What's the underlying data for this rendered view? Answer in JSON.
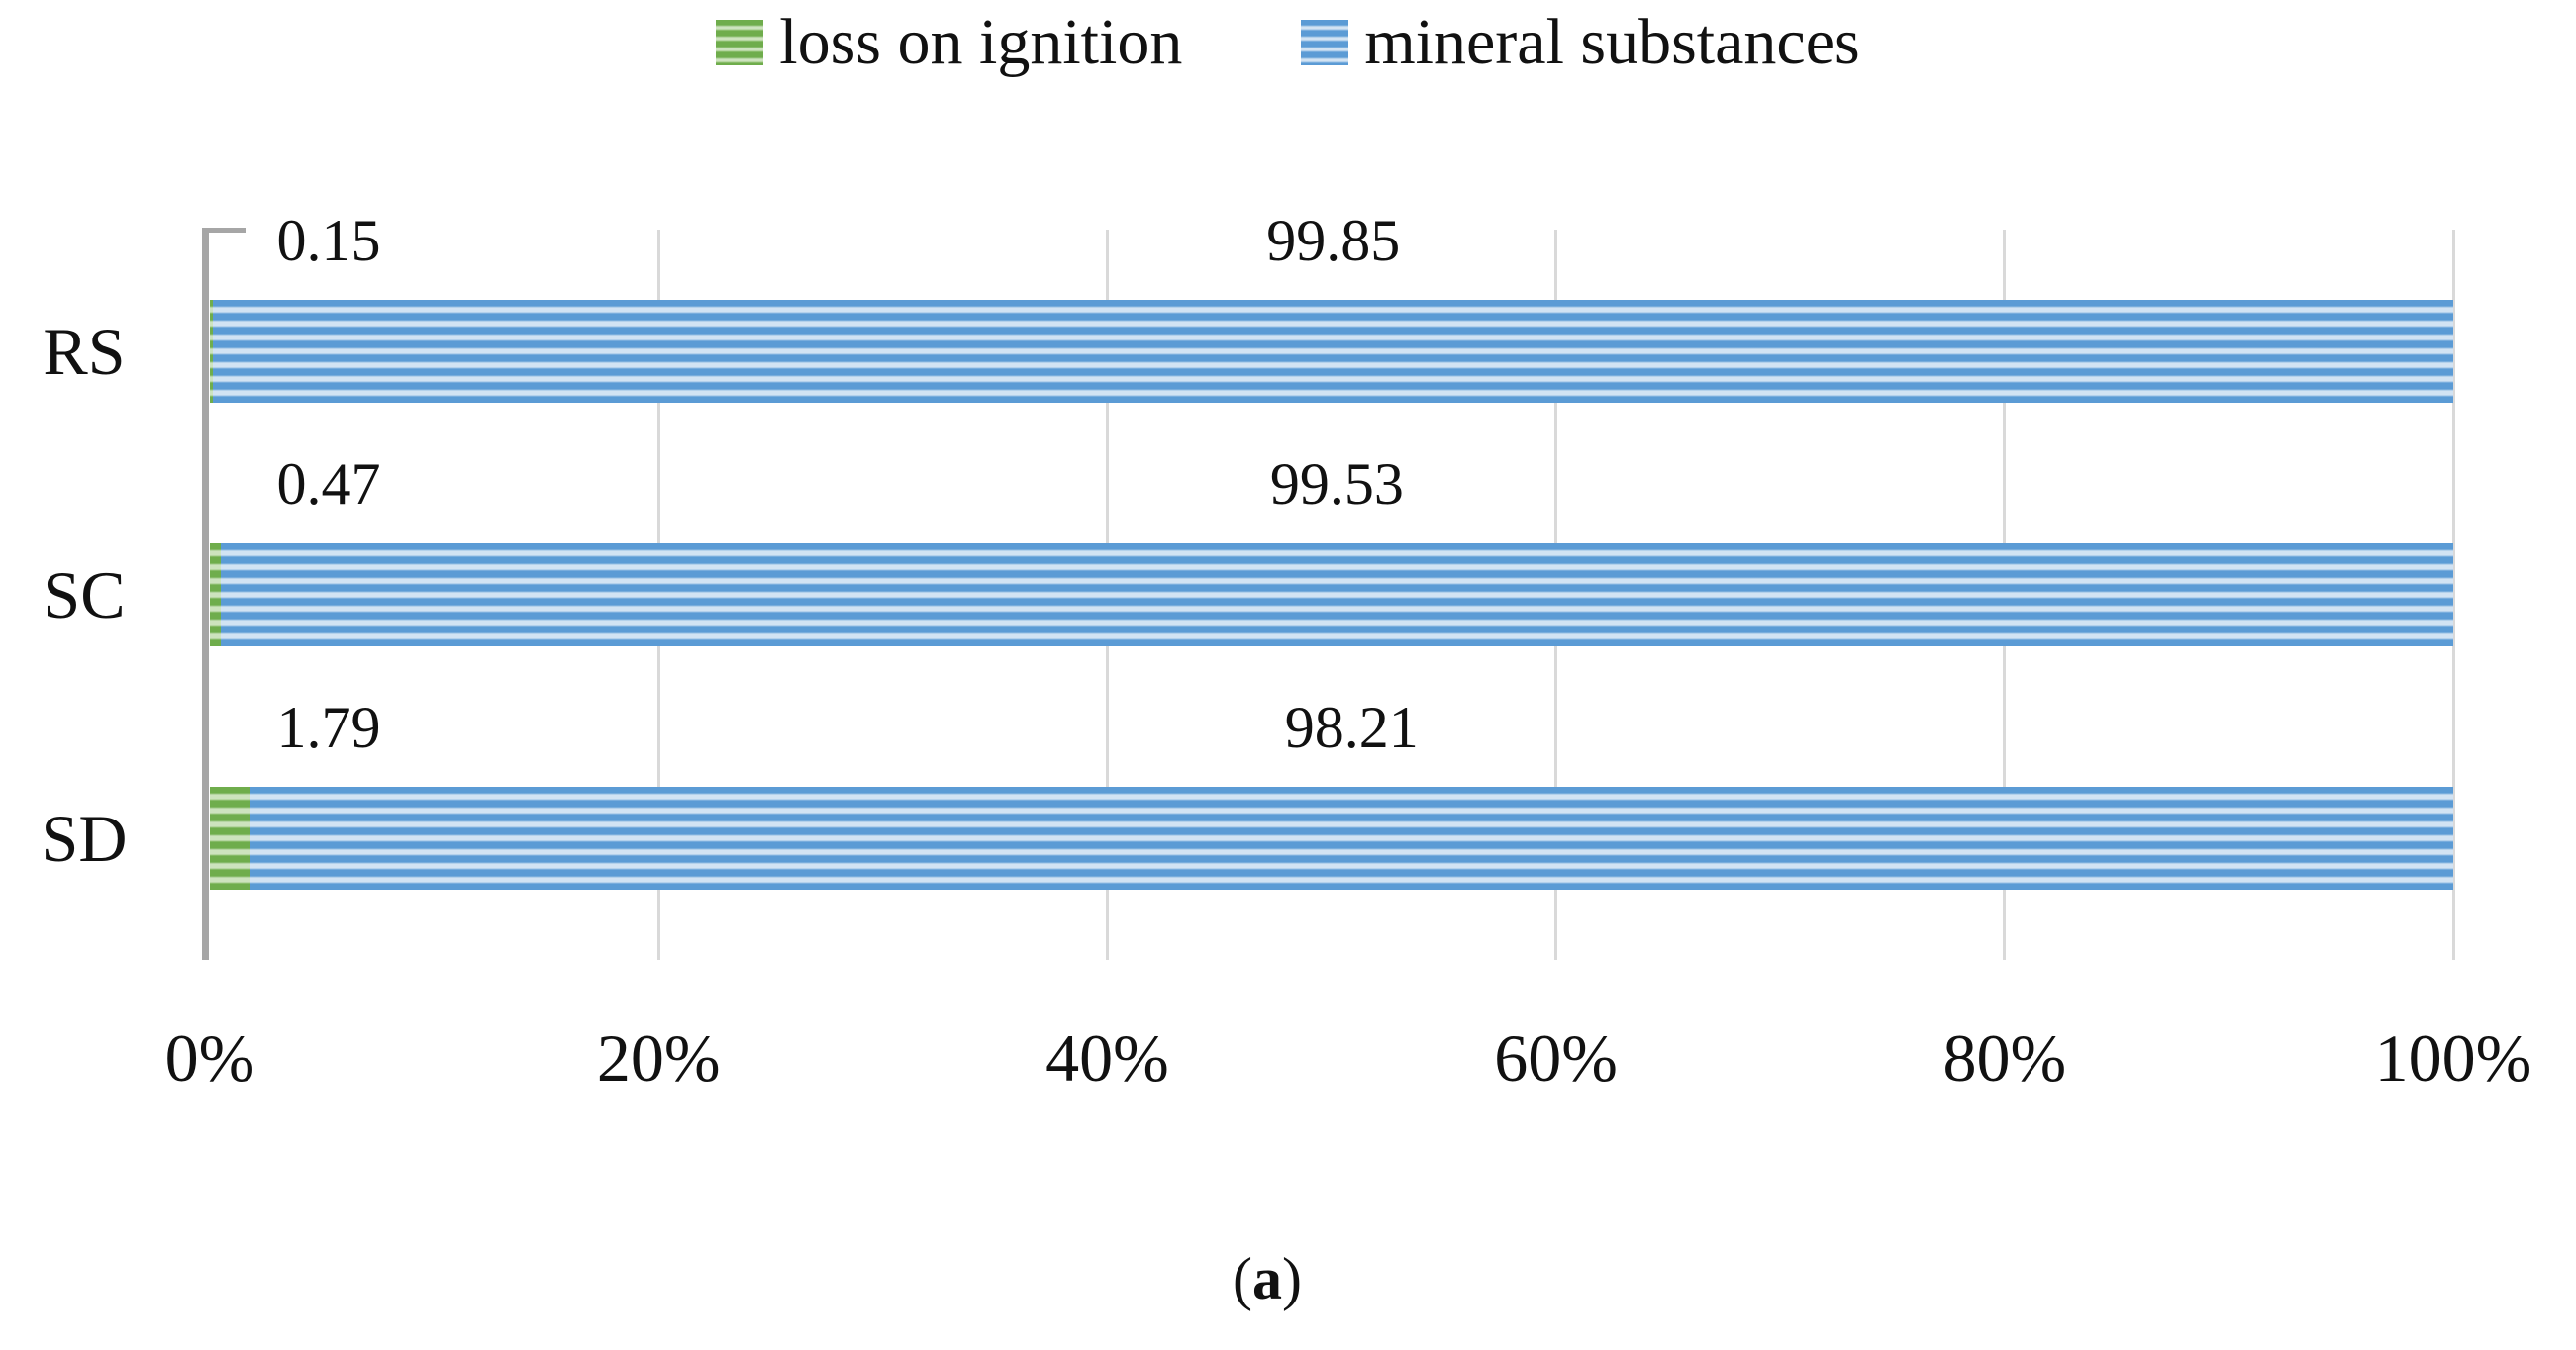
{
  "chart_data": {
    "type": "bar",
    "orientation": "horizontal",
    "stacked": true,
    "unit": "percent",
    "title": "",
    "categories": [
      "RS",
      "SC",
      "SD"
    ],
    "series": [
      {
        "name": "loss on ignition",
        "values": [
          0.15,
          0.47,
          1.79
        ],
        "labels": [
          "0.15",
          "0.47",
          "1.79"
        ]
      },
      {
        "name": "mineral substances",
        "values": [
          99.85,
          99.53,
          98.21
        ],
        "labels": [
          "99.85",
          "99.53",
          "98.21"
        ]
      }
    ],
    "x_axis": {
      "min": 0,
      "max": 100,
      "tick_labels": [
        "0%",
        "20%",
        "40%",
        "60%",
        "80%",
        "100%"
      ]
    },
    "legend_position": "top",
    "grid": true,
    "data_label_position": "above bar: first-series label near axis, second-series label over middle of bar"
  },
  "caption": {
    "open": "(",
    "letter": "a",
    "close": ")"
  },
  "colors": {
    "loss_dark": "#6fad4c",
    "loss_light": "#cde3be",
    "mineral_dark": "#5b9bd5",
    "mineral_light": "#d2e3f3",
    "axis": "#a6a6a6",
    "gridline": "#d9d9d9",
    "text": "#111111"
  }
}
